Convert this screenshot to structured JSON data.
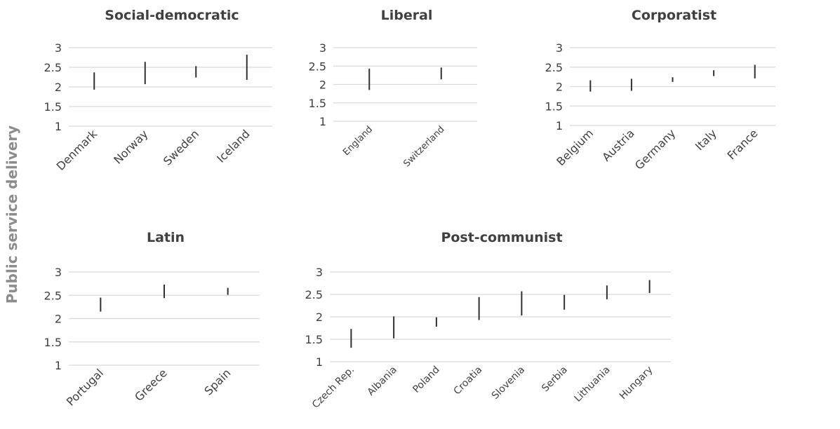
{
  "figure": {
    "ylabel": "Public service delivery"
  },
  "chart_data": [
    {
      "type": "range",
      "title": "Social-democratic",
      "categories": [
        "Denmark",
        "Norway",
        "Sweden",
        "Iceland"
      ],
      "ranges": [
        [
          1.93,
          2.37
        ],
        [
          2.07,
          2.64
        ],
        [
          2.24,
          2.53
        ],
        [
          2.18,
          2.82
        ]
      ],
      "yticks": [
        "1",
        "1.5",
        "2",
        "2.5",
        "3"
      ],
      "ylim": [
        1,
        3
      ]
    },
    {
      "type": "range",
      "title": "Liberal",
      "categories": [
        "England",
        "Switzerland"
      ],
      "ranges": [
        [
          1.85,
          2.43
        ],
        [
          2.14,
          2.46
        ]
      ],
      "yticks": [
        "1",
        "1.5",
        "2",
        "2.5",
        "3"
      ],
      "ylim": [
        1,
        3
      ]
    },
    {
      "type": "range",
      "title": "Corporatist",
      "categories": [
        "Belgium",
        "Austria",
        "Germany",
        "Italy",
        "France"
      ],
      "ranges": [
        [
          1.87,
          2.16
        ],
        [
          1.89,
          2.2
        ],
        [
          2.12,
          2.24
        ],
        [
          2.27,
          2.42
        ],
        [
          2.21,
          2.56
        ]
      ],
      "yticks": [
        "1",
        "1.5",
        "2",
        "2.5",
        "3"
      ],
      "ylim": [
        1,
        3
      ]
    },
    {
      "type": "range",
      "title": "Latin",
      "categories": [
        "Portugal",
        "Greece",
        "Spain"
      ],
      "ranges": [
        [
          2.15,
          2.45
        ],
        [
          2.44,
          2.73
        ],
        [
          2.51,
          2.66
        ]
      ],
      "yticks": [
        "1",
        "1.5",
        "2",
        "2.5",
        "3"
      ],
      "ylim": [
        1,
        3
      ]
    },
    {
      "type": "range",
      "title": "Post-communist",
      "categories": [
        "Czech Rep.",
        "Albania",
        "Poland",
        "Croatia",
        "Slovenia",
        "Serbia",
        "Lithuania",
        "Hungary"
      ],
      "ranges": [
        [
          1.31,
          1.73
        ],
        [
          1.52,
          2.01
        ],
        [
          1.78,
          1.99
        ],
        [
          1.93,
          2.44
        ],
        [
          2.03,
          2.57
        ],
        [
          2.16,
          2.49
        ],
        [
          2.39,
          2.7
        ],
        [
          2.53,
          2.82
        ]
      ],
      "yticks": [
        "1",
        "1.5",
        "2",
        "2.5",
        "3"
      ],
      "ylim": [
        1,
        3
      ]
    }
  ]
}
